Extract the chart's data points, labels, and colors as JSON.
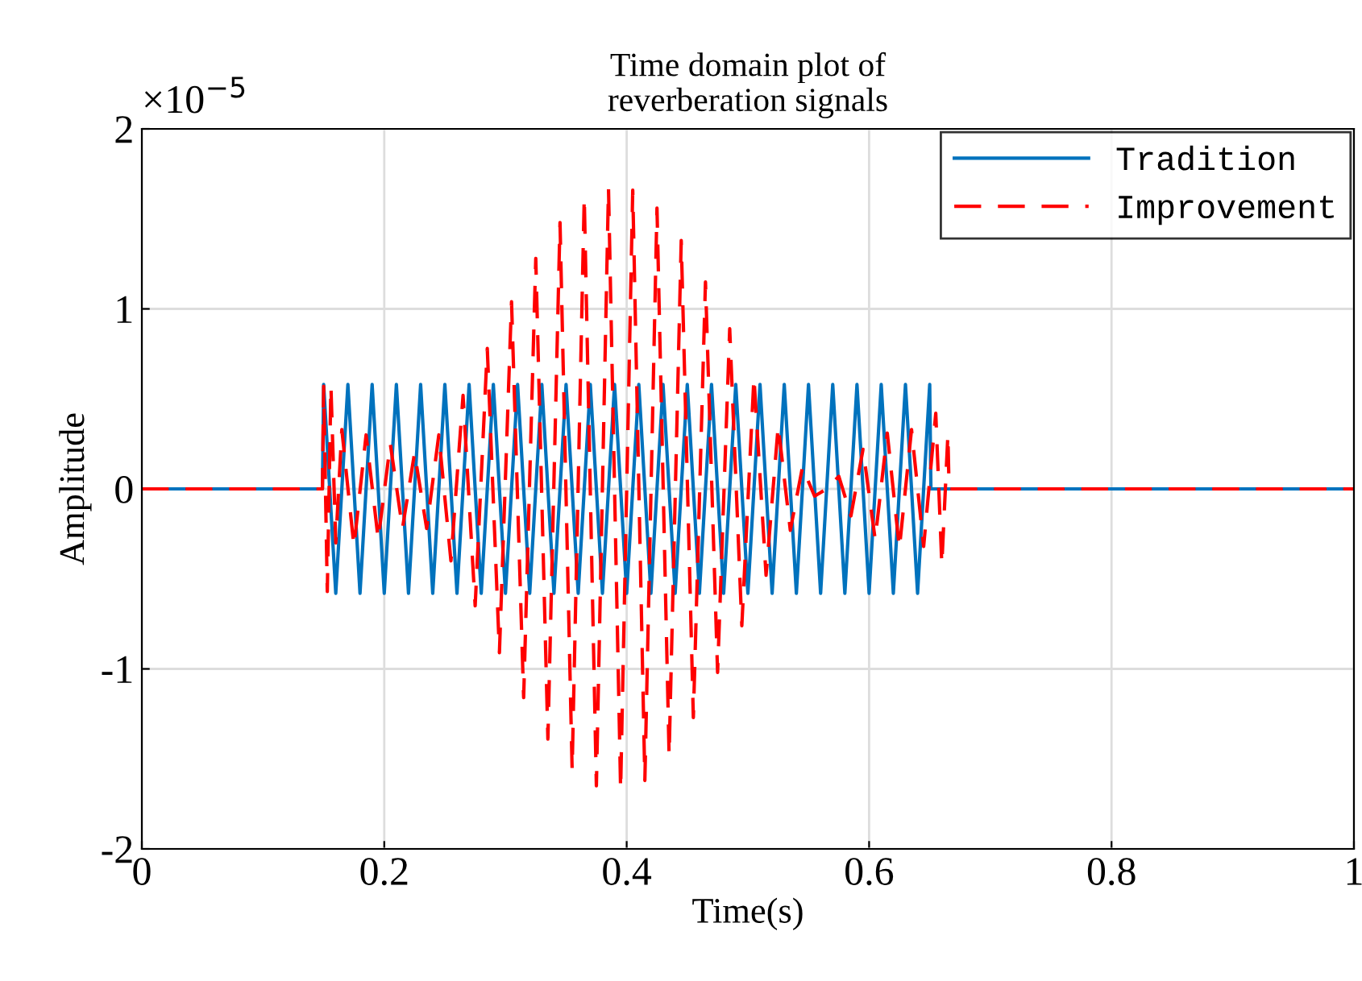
{
  "chart_data": {
    "type": "line",
    "title": "Time domain plot of\nreverberation signals",
    "xlabel": "Time(s)",
    "ylabel": "Amplitude",
    "annotations": [
      "×10$^{−5}$"
    ],
    "xlim": [
      0,
      1
    ],
    "xticks": [
      0,
      0.2,
      0.4,
      0.6,
      0.8,
      1
    ],
    "ylim": [
      -2,
      2
    ],
    "yticks": [
      -2,
      -1,
      0,
      1,
      2
    ],
    "grid": true,
    "legend": "top right",
    "marker": "none",
    "series": [
      {
        "name": "Tradition",
        "color": "#0072bd",
        "line_style": "solid",
        "x": [
          0,
          0.149,
          0.15,
          0.16,
          0.17,
          0.18,
          0.19,
          0.2,
          0.21,
          0.22,
          0.23,
          0.24,
          0.25,
          0.26,
          0.27,
          0.28,
          0.29,
          0.3,
          0.31,
          0.32,
          0.33,
          0.34,
          0.35,
          0.36,
          0.37,
          0.38,
          0.39,
          0.4,
          0.41,
          0.42,
          0.43,
          0.44,
          0.45,
          0.46,
          0.47,
          0.48,
          0.49,
          0.5,
          0.51,
          0.52,
          0.53,
          0.54,
          0.55,
          0.56,
          0.57,
          0.58,
          0.59,
          0.6,
          0.61,
          0.62,
          0.63,
          0.64,
          0.65,
          0.651,
          1
        ],
        "values": [
          0,
          0,
          0.58,
          -0.58,
          0.58,
          -0.58,
          0.58,
          -0.58,
          0.58,
          -0.58,
          0.58,
          -0.58,
          0.58,
          -0.58,
          0.58,
          -0.58,
          0.58,
          -0.58,
          0.58,
          -0.58,
          0.58,
          -0.58,
          0.58,
          -0.58,
          0.58,
          -0.58,
          0.58,
          -0.58,
          0.58,
          -0.58,
          0.58,
          -0.58,
          0.58,
          -0.58,
          0.58,
          -0.58,
          0.58,
          -0.58,
          0.58,
          -0.58,
          0.58,
          -0.58,
          0.58,
          -0.58,
          0.58,
          -0.58,
          0.58,
          -0.58,
          0.58,
          -0.58,
          0.58,
          -0.58,
          0.58,
          0,
          0
        ]
      },
      {
        "name": "Improvement",
        "color": "#ff0000",
        "line_style": "dashed",
        "x": [
          0,
          0.149,
          0.15,
          0.153,
          0.156,
          0.16,
          0.165,
          0.175,
          0.185,
          0.195,
          0.205,
          0.215,
          0.225,
          0.235,
          0.245,
          0.255,
          0.265,
          0.275,
          0.285,
          0.295,
          0.305,
          0.315,
          0.325,
          0.335,
          0.345,
          0.355,
          0.365,
          0.375,
          0.385,
          0.395,
          0.405,
          0.415,
          0.425,
          0.435,
          0.445,
          0.455,
          0.465,
          0.475,
          0.485,
          0.495,
          0.505,
          0.515,
          0.525,
          0.535,
          0.545,
          0.555,
          0.565,
          0.575,
          0.585,
          0.595,
          0.605,
          0.615,
          0.625,
          0.635,
          0.645,
          0.655,
          0.66,
          0.665,
          0.666,
          1
        ],
        "values": [
          0,
          0,
          0.57,
          -0.57,
          0.57,
          -0.3,
          0.33,
          -0.32,
          0.3,
          -0.28,
          0.25,
          -0.22,
          0.2,
          -0.22,
          0.3,
          -0.4,
          0.52,
          -0.65,
          0.78,
          -0.91,
          1.04,
          -1.16,
          1.28,
          -1.39,
          1.48,
          -1.56,
          1.62,
          -1.65,
          1.67,
          -1.67,
          1.66,
          -1.62,
          1.56,
          -1.48,
          1.38,
          -1.27,
          1.15,
          -1.02,
          0.89,
          -0.76,
          0.62,
          -0.48,
          0.35,
          -0.23,
          0.12,
          -0.04,
          0,
          0.07,
          -0.15,
          0.22,
          -0.28,
          0.31,
          -0.33,
          0.33,
          -0.32,
          0.42,
          -0.42,
          0.3,
          0,
          0
        ]
      }
    ]
  }
}
